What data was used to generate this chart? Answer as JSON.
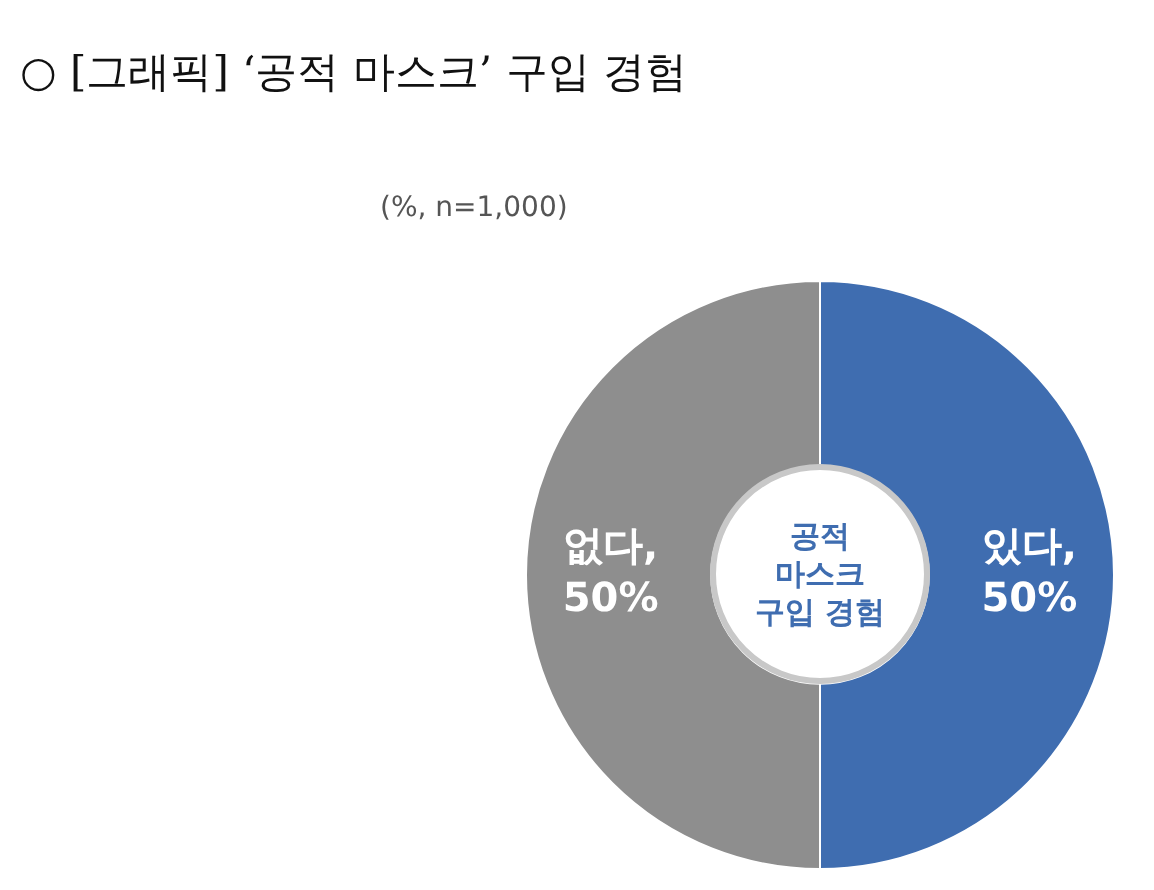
{
  "chart_data": {
    "type": "donut",
    "title": "○ [그래픽] ‘공적 마스크’ 구입 경험",
    "subtitle": "(%, n=1,000)",
    "categories": [
      "있다",
      "없다"
    ],
    "values": [
      50,
      50
    ],
    "colors": [
      "#3f6db0",
      "#8e8e8e"
    ],
    "value_labels": [
      ", 50%",
      ", 50%"
    ],
    "annotations": [
      "공적\n마스크\n구입 경험"
    ],
    "legend": false
  }
}
